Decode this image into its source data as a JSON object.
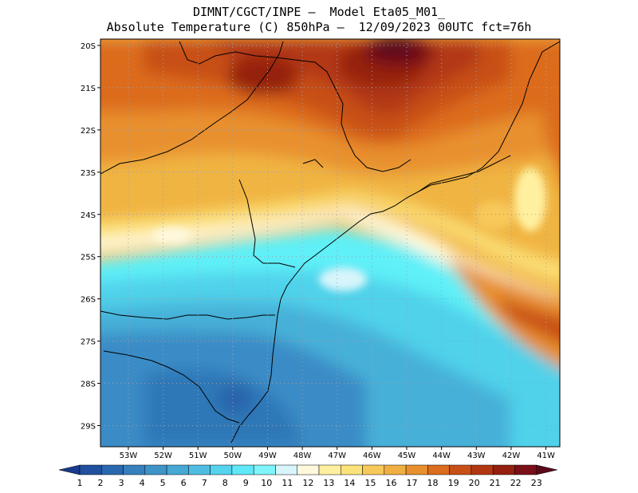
{
  "title": {
    "line1": "DIMNT/CGCT/INPE –  Model Eta05_M01_",
    "line2": "Absolute Temperature (C) 850hPa –  12/09/2023 00UTC fct=76h"
  },
  "map": {
    "lat_labels": [
      "20S",
      "21S",
      "22S",
      "23S",
      "24S",
      "25S",
      "26S",
      "27S",
      "28S",
      "29S"
    ],
    "lon_labels": [
      "53W",
      "52W",
      "51W",
      "50W",
      "49W",
      "48W",
      "47W",
      "46W",
      "45W",
      "44W",
      "43W",
      "42W",
      "41W"
    ],
    "lat_range": [
      -29.5,
      -19.85
    ],
    "lon_range": [
      -53.8,
      -40.6
    ],
    "grid": "dotted"
  },
  "colorbar": {
    "labels": [
      "1",
      "2",
      "3",
      "4",
      "5",
      "6",
      "7",
      "8",
      "9",
      "10",
      "11",
      "12",
      "13",
      "14",
      "15",
      "16",
      "17",
      "18",
      "19",
      "20",
      "21",
      "22",
      "23"
    ],
    "colors": [
      "#1a3a8c",
      "#20509e",
      "#2a68b0",
      "#3580bd",
      "#3e94c8",
      "#46a8d4",
      "#4fbde2",
      "#56d3ee",
      "#5fe8f8",
      "#7ff4fb",
      "#d7f5fb",
      "#fff8dc",
      "#fff0a0",
      "#fce27a",
      "#f7c95a",
      "#f0af42",
      "#e8902d",
      "#dc6c1e",
      "#c85016",
      "#b23812",
      "#952010",
      "#7a1018",
      "#5a0a1a"
    ]
  },
  "colors": {
    "cold": "#2e74b8",
    "cyan": "#5ff0f8",
    "warm": "#f0b442",
    "hot": "#b83a12",
    "max": "#5a0a1a"
  }
}
